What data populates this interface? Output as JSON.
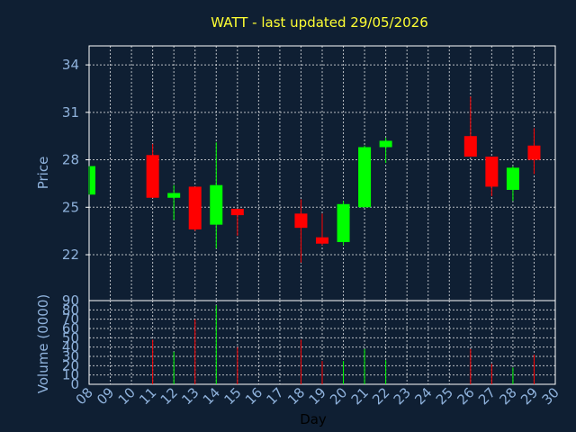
{
  "chart_data": {
    "type": "candlestick",
    "title": "WATT - last updated 29/05/2026",
    "xlabel": "Day",
    "ylabel_price": "Price",
    "ylabel_volume": "Volume (0000)",
    "x_tick_labels": [
      "08",
      "09",
      "10",
      "11",
      "12",
      "13",
      "14",
      "15",
      "16",
      "17",
      "18",
      "19",
      "20",
      "21",
      "22",
      "23",
      "24",
      "25",
      "26",
      "27",
      "28",
      "29",
      "30"
    ],
    "price_ticks": [
      22,
      25,
      28,
      31,
      34
    ],
    "price_ylim": [
      19.1,
      35.2
    ],
    "volume_ticks": [
      0,
      10,
      20,
      30,
      40,
      50,
      60,
      70,
      80,
      90
    ],
    "volume_ylim": [
      0,
      90
    ],
    "grid": true,
    "up_color": "#00ff00",
    "down_color": "#ff0000",
    "candles": [
      {
        "day": "08",
        "open": 25.8,
        "high": 27.6,
        "low": 25.8,
        "close": 27.6,
        "volume": 0
      },
      {
        "day": "11",
        "open": 28.3,
        "high": 29.0,
        "low": 25.6,
        "close": 25.6,
        "volume": 48
      },
      {
        "day": "12",
        "open": 25.6,
        "high": 26.4,
        "low": 24.2,
        "close": 25.9,
        "volume": 35
      },
      {
        "day": "13",
        "open": 26.3,
        "high": 26.3,
        "low": 23.5,
        "close": 23.6,
        "volume": 70
      },
      {
        "day": "14",
        "open": 23.9,
        "high": 29.1,
        "low": 22.4,
        "close": 26.4,
        "volume": 85
      },
      {
        "day": "15",
        "open": 24.9,
        "high": 24.9,
        "low": 23.2,
        "close": 24.5,
        "volume": 40
      },
      {
        "day": "18",
        "open": 24.6,
        "high": 25.5,
        "low": 21.5,
        "close": 23.7,
        "volume": 48
      },
      {
        "day": "19",
        "open": 23.1,
        "high": 24.6,
        "low": 22.6,
        "close": 22.7,
        "volume": 25
      },
      {
        "day": "20",
        "open": 22.8,
        "high": 25.4,
        "low": 22.6,
        "close": 25.2,
        "volume": 25
      },
      {
        "day": "21",
        "open": 25.0,
        "high": 28.9,
        "low": 25.0,
        "close": 28.8,
        "volume": 38
      },
      {
        "day": "22",
        "open": 28.8,
        "high": 29.4,
        "low": 27.8,
        "close": 29.2,
        "volume": 26
      },
      {
        "day": "26",
        "open": 29.5,
        "high": 32.0,
        "low": 28.2,
        "close": 28.2,
        "volume": 38
      },
      {
        "day": "27",
        "open": 28.2,
        "high": 28.2,
        "low": 25.7,
        "close": 26.3,
        "volume": 22
      },
      {
        "day": "28",
        "open": 26.1,
        "high": 27.6,
        "low": 25.4,
        "close": 27.5,
        "volume": 18
      },
      {
        "day": "29",
        "open": 28.9,
        "high": 30.0,
        "low": 27.1,
        "close": 28.0,
        "volume": 32
      }
    ]
  }
}
